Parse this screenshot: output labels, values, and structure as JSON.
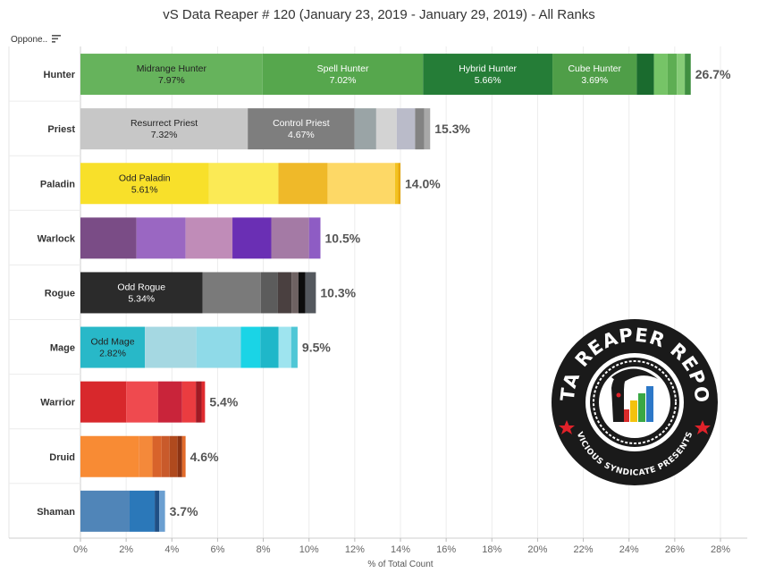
{
  "chart_data": {
    "type": "bar",
    "orientation": "horizontal",
    "stacked": true,
    "title": "vS Data Reaper # 120 (January 23, 2019 - January 29, 2019) - All Ranks",
    "xlabel": "% of Total Count",
    "ylabel": "Oppone..",
    "xlim": [
      0,
      28
    ],
    "xticks": [
      "0%",
      "2%",
      "4%",
      "6%",
      "8%",
      "10%",
      "12%",
      "14%",
      "16%",
      "18%",
      "20%",
      "22%",
      "24%",
      "26%",
      "28%"
    ],
    "grid": "vertical",
    "categories": [
      {
        "name": "Hunter",
        "total": "26.7%",
        "segments": [
          {
            "label": "Midrange Hunter",
            "value": 7.97,
            "value_label": "7.97%",
            "color": "#66b35c"
          },
          {
            "label": "Spell Hunter",
            "value": 7.02,
            "value_label": "7.02%",
            "color": "#56a74d"
          },
          {
            "label": "Hybrid Hunter",
            "value": 5.66,
            "value_label": "5.66%",
            "color": "#257d37"
          },
          {
            "label": "Cube Hunter",
            "value": 3.69,
            "value_label": "3.69%",
            "color": "#4f9e48"
          },
          {
            "label": "",
            "value": 0.75,
            "value_label": "",
            "color": "#1a6b2e"
          },
          {
            "label": "",
            "value": 0.6,
            "value_label": "",
            "color": "#76c467"
          },
          {
            "label": "",
            "value": 0.4,
            "value_label": "",
            "color": "#5eae53"
          },
          {
            "label": "",
            "value": 0.35,
            "value_label": "",
            "color": "#86cc77"
          },
          {
            "label": "",
            "value": 0.26,
            "value_label": "",
            "color": "#3f8f40"
          }
        ]
      },
      {
        "name": "Priest",
        "total": "15.3%",
        "segments": [
          {
            "label": "Resurrect Priest",
            "value": 7.32,
            "value_label": "7.32%",
            "color": "#c7c7c7"
          },
          {
            "label": "Control Priest",
            "value": 4.67,
            "value_label": "4.67%",
            "color": "#7e7e7e"
          },
          {
            "label": "",
            "value": 0.95,
            "value_label": "",
            "color": "#9aa4a6"
          },
          {
            "label": "",
            "value": 0.9,
            "value_label": "",
            "color": "#d3d3d3"
          },
          {
            "label": "",
            "value": 0.8,
            "value_label": "",
            "color": "#babbc9"
          },
          {
            "label": "",
            "value": 0.4,
            "value_label": "",
            "color": "#838383"
          },
          {
            "label": "",
            "value": 0.26,
            "value_label": "",
            "color": "#a8a8a8"
          }
        ]
      },
      {
        "name": "Paladin",
        "total": "14.0%",
        "segments": [
          {
            "label": "Odd Paladin",
            "value": 5.61,
            "value_label": "5.61%",
            "color": "#f8e02a"
          },
          {
            "label": "",
            "value": 3.05,
            "value_label": "",
            "color": "#fbea55"
          },
          {
            "label": "",
            "value": 2.15,
            "value_label": "",
            "color": "#efb929"
          },
          {
            "label": "",
            "value": 2.95,
            "value_label": "",
            "color": "#fdd866"
          },
          {
            "label": "",
            "value": 0.14,
            "value_label": "",
            "color": "#f3c21f"
          },
          {
            "label": "",
            "value": 0.1,
            "value_label": "",
            "color": "#e7a90f"
          }
        ]
      },
      {
        "name": "Warlock",
        "total": "10.5%",
        "segments": [
          {
            "label": "",
            "value": 2.45,
            "value_label": "",
            "color": "#7a4c86"
          },
          {
            "label": "",
            "value": 2.15,
            "value_label": "",
            "color": "#9a67c2"
          },
          {
            "label": "",
            "value": 2.05,
            "value_label": "",
            "color": "#c08cb8"
          },
          {
            "label": "",
            "value": 1.7,
            "value_label": "",
            "color": "#6a2fb4"
          },
          {
            "label": "",
            "value": 1.65,
            "value_label": "",
            "color": "#a47aa5"
          },
          {
            "label": "",
            "value": 0.5,
            "value_label": "",
            "color": "#8e5cc4"
          }
        ]
      },
      {
        "name": "Rogue",
        "total": "10.3%",
        "segments": [
          {
            "label": "Odd Rogue",
            "value": 5.34,
            "value_label": "5.34%",
            "color": "#2b2b2b"
          },
          {
            "label": "",
            "value": 2.55,
            "value_label": "",
            "color": "#7a7a7a"
          },
          {
            "label": "",
            "value": 0.75,
            "value_label": "",
            "color": "#5c5c5c"
          },
          {
            "label": "",
            "value": 0.6,
            "value_label": "",
            "color": "#4a4040"
          },
          {
            "label": "",
            "value": 0.3,
            "value_label": "",
            "color": "#6e6262"
          },
          {
            "label": "",
            "value": 0.3,
            "value_label": "",
            "color": "#0d0d0d"
          },
          {
            "label": "",
            "value": 0.46,
            "value_label": "",
            "color": "#54585e"
          }
        ]
      },
      {
        "name": "Mage",
        "total": "9.5%",
        "segments": [
          {
            "label": "Odd Mage",
            "value": 2.82,
            "value_label": "2.82%",
            "color": "#28b8c8"
          },
          {
            "label": "",
            "value": 2.25,
            "value_label": "",
            "color": "#a5d8e2"
          },
          {
            "label": "",
            "value": 1.95,
            "value_label": "",
            "color": "#8fdae8"
          },
          {
            "label": "",
            "value": 0.85,
            "value_label": "",
            "color": "#1ad4e6"
          },
          {
            "label": "",
            "value": 0.8,
            "value_label": "",
            "color": "#1fb7c9"
          },
          {
            "label": "",
            "value": 0.55,
            "value_label": "",
            "color": "#9ee4ef"
          },
          {
            "label": "",
            "value": 0.28,
            "value_label": "",
            "color": "#4fc7d6"
          }
        ]
      },
      {
        "name": "Warrior",
        "total": "5.4%",
        "segments": [
          {
            "label": "",
            "value": 2.0,
            "value_label": "",
            "color": "#d8282c"
          },
          {
            "label": "",
            "value": 1.4,
            "value_label": "",
            "color": "#ef4a4f"
          },
          {
            "label": "",
            "value": 1.05,
            "value_label": "",
            "color": "#c9243a"
          },
          {
            "label": "",
            "value": 0.6,
            "value_label": "",
            "color": "#ea3c40"
          },
          {
            "label": "",
            "value": 0.25,
            "value_label": "",
            "color": "#a01a24"
          },
          {
            "label": "",
            "value": 0.15,
            "value_label": "",
            "color": "#e02b2f"
          }
        ]
      },
      {
        "name": "Druid",
        "total": "4.6%",
        "segments": [
          {
            "label": "",
            "value": 2.55,
            "value_label": "",
            "color": "#f88b34"
          },
          {
            "label": "",
            "value": 0.6,
            "value_label": "",
            "color": "#f4893a"
          },
          {
            "label": "",
            "value": 0.4,
            "value_label": "",
            "color": "#d8632b"
          },
          {
            "label": "",
            "value": 0.35,
            "value_label": "",
            "color": "#c95a2b"
          },
          {
            "label": "",
            "value": 0.35,
            "value_label": "",
            "color": "#b04a1e"
          },
          {
            "label": "",
            "value": 0.2,
            "value_label": "",
            "color": "#8c3414"
          },
          {
            "label": "",
            "value": 0.15,
            "value_label": "",
            "color": "#e36b2a"
          }
        ]
      },
      {
        "name": "Shaman",
        "total": "3.7%",
        "segments": [
          {
            "label": "",
            "value": 2.15,
            "value_label": "",
            "color": "#5085b8"
          },
          {
            "label": "",
            "value": 1.1,
            "value_label": "",
            "color": "#2b78b9"
          },
          {
            "label": "",
            "value": 0.2,
            "value_label": "",
            "color": "#1f4f85"
          },
          {
            "label": "",
            "value": 0.25,
            "value_label": "",
            "color": "#6b9fd1"
          }
        ]
      }
    ]
  },
  "logo": {
    "top_text": "DATA REAPER REPORT",
    "bottom_text": "VICIOUS SYNDICATE PRESENTS",
    "colors": {
      "ring": "#1a1a1a",
      "text": "#ffffff",
      "star": "#e0222a"
    }
  }
}
